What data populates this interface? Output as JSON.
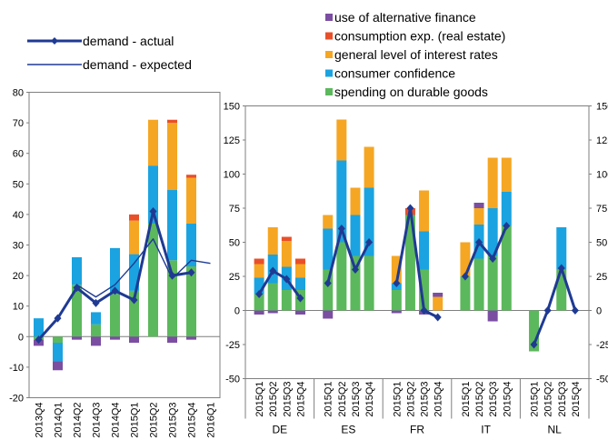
{
  "chart_data": [
    {
      "type": "bar",
      "categories": [
        "2013Q4",
        "2014Q1",
        "2014Q2",
        "2014Q3",
        "2014Q4",
        "2015Q1",
        "2015Q2",
        "2015Q3",
        "2015Q4",
        "2016Q1"
      ],
      "ylim": [
        -20,
        80
      ],
      "yticks": [
        -20,
        -10,
        0,
        10,
        20,
        30,
        40,
        50,
        60,
        70,
        80
      ],
      "series": [
        {
          "name": "spending on durable goods",
          "color": "#5cb85c",
          "values": [
            -1,
            -2,
            17,
            4,
            14,
            15,
            37,
            25,
            23,
            null
          ]
        },
        {
          "name": "consumer confidence",
          "color": "#1aa3e0",
          "values": [
            6,
            -6,
            9,
            4,
            15,
            12,
            19,
            23,
            14,
            null
          ]
        },
        {
          "name": "general level of interest rates",
          "color": "#f5a623",
          "values": [
            0,
            0,
            0,
            0,
            0,
            11,
            15,
            22,
            15,
            null
          ]
        },
        {
          "name": "consumption exp. (real estate)",
          "color": "#e8502a",
          "values": [
            0,
            0,
            0,
            0,
            0,
            2,
            0,
            1,
            1,
            null
          ]
        },
        {
          "name": "use of alternative finance",
          "color": "#7b4ea2",
          "values": [
            -2,
            -3,
            -1,
            -3,
            -1,
            -2,
            0,
            -2,
            -1,
            null
          ]
        }
      ],
      "lines": [
        {
          "name": "demand - actual",
          "values": [
            -1,
            6,
            16,
            11,
            15,
            12,
            41,
            20,
            21,
            null
          ]
        },
        {
          "name": "demand - expected",
          "values": [
            7,
            null,
            17,
            13,
            17,
            24,
            32,
            19,
            25,
            24
          ]
        }
      ]
    },
    {
      "type": "bar",
      "groups": [
        {
          "name": "DE",
          "categories": [
            "2015Q1",
            "2015Q2",
            "2015Q3",
            "2015Q4"
          ]
        },
        {
          "name": "ES",
          "categories": [
            "2015Q1",
            "2015Q2",
            "2015Q3",
            "2015Q4"
          ]
        },
        {
          "name": "FR",
          "categories": [
            "2015Q1",
            "2015Q2",
            "2015Q3",
            "2015Q4"
          ]
        },
        {
          "name": "IT",
          "categories": [
            "2015Q1",
            "2015Q2",
            "2015Q3",
            "2015Q4"
          ]
        },
        {
          "name": "NL",
          "categories": [
            "2015Q1",
            "2015Q2",
            "2015Q3",
            "2015Q4"
          ]
        }
      ],
      "ylim": [
        -50,
        150
      ],
      "yticks": [
        -50,
        -25,
        0,
        25,
        50,
        75,
        100,
        125,
        150
      ],
      "series": [
        {
          "name": "spending on durable goods",
          "color": "#5cb85c",
          "values": [
            12,
            20,
            15,
            15,
            30,
            50,
            40,
            40,
            15,
            70,
            30,
            0,
            25,
            38,
            40,
            62,
            -30,
            0,
            30,
            0
          ]
        },
        {
          "name": "consumer confidence",
          "color": "#1aa3e0",
          "values": [
            12,
            21,
            17,
            9,
            30,
            60,
            30,
            50,
            5,
            0,
            28,
            0,
            0,
            25,
            35,
            25,
            0,
            0,
            31,
            0
          ]
        },
        {
          "name": "general level of interest rates",
          "color": "#f5a623",
          "values": [
            10,
            20,
            19,
            10,
            10,
            30,
            20,
            30,
            20,
            0,
            30,
            10,
            25,
            12,
            37,
            25,
            0,
            0,
            0,
            0
          ]
        },
        {
          "name": "consumption exp. (real estate)",
          "color": "#e8502a",
          "values": [
            4,
            0,
            3,
            4,
            0,
            0,
            0,
            0,
            0,
            5,
            0,
            0,
            0,
            0,
            0,
            0,
            0,
            0,
            0,
            0
          ]
        },
        {
          "name": "use of alternative finance",
          "color": "#7b4ea2",
          "values": [
            -3,
            -2,
            0,
            -3,
            -6,
            0,
            0,
            0,
            -2,
            0,
            -3,
            3,
            0,
            4,
            -8,
            0,
            0,
            0,
            0,
            0
          ]
        }
      ],
      "lines": [
        {
          "name": "demand - actual",
          "values": [
            12,
            29,
            23,
            9,
            20,
            60,
            30,
            50,
            20,
            75,
            0,
            -5,
            25,
            50,
            38,
            62,
            -25,
            0,
            31,
            0
          ]
        }
      ]
    }
  ],
  "legend": [
    {
      "name": "use of alternative finance",
      "color": "#7b4ea2"
    },
    {
      "name": "consumption exp. (real estate)",
      "color": "#e8502a"
    },
    {
      "name": "general level of interest rates",
      "color": "#f5a623"
    },
    {
      "name": "consumer confidence",
      "color": "#1aa3e0"
    },
    {
      "name": "spending on durable goods",
      "color": "#5cb85c"
    }
  ],
  "line_legend": [
    {
      "name": "demand - actual",
      "style": "marker"
    },
    {
      "name": "demand - expected",
      "style": "thin"
    }
  ],
  "line_color": "#1f3a93"
}
